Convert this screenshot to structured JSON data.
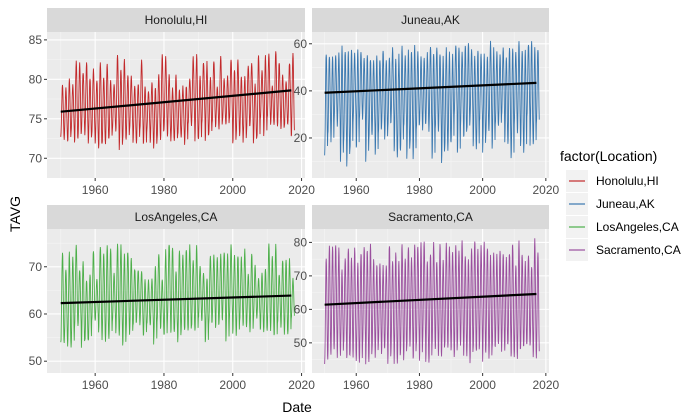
{
  "chart_data": {
    "type": "line",
    "xlabel": "Date",
    "ylabel": "TAVG",
    "legend": {
      "title": "factor(Location)",
      "position": "right"
    },
    "grid": true,
    "x_ticks": [
      1960,
      1980,
      2000,
      2020
    ],
    "panels": [
      {
        "name": "Honolulu,HI",
        "color": "#c2292b",
        "xlim": [
          1946,
          2021
        ],
        "ylim": [
          67.5,
          86
        ],
        "y_ticks": [
          70,
          75,
          80,
          85
        ],
        "min_range": [
          71.5,
          74.5
        ],
        "max_range": [
          78.5,
          83.5
        ],
        "trend": {
          "x": [
            1950,
            2017
          ],
          "y": [
            75.9,
            78.6
          ]
        }
      },
      {
        "name": "Juneau,AK",
        "color": "#3a78b0",
        "xlim": [
          1946,
          2021
        ],
        "ylim": [
          3,
          65
        ],
        "y_ticks": [
          20,
          40,
          60
        ],
        "min_range": [
          10,
          30
        ],
        "max_range": [
          54,
          60
        ],
        "trend": {
          "x": [
            1950,
            2017
          ],
          "y": [
            39.2,
            43.4
          ]
        }
      },
      {
        "name": "LosAngeles,CA",
        "color": "#4daf4a",
        "xlim": [
          1946,
          2021
        ],
        "ylim": [
          47.5,
          78
        ],
        "y_ticks": [
          50,
          60,
          70
        ],
        "min_range": [
          53,
          59
        ],
        "max_range": [
          67,
          75
        ],
        "trend": {
          "x": [
            1950,
            2017
          ],
          "y": [
            62.3,
            63.9
          ]
        }
      },
      {
        "name": "Sacramento,CA",
        "color": "#9a4f9e",
        "xlim": [
          1946,
          2021
        ],
        "ylim": [
          41,
          84
        ],
        "y_ticks": [
          50,
          60,
          70,
          80
        ],
        "min_range": [
          44,
          50
        ],
        "max_range": [
          72,
          81
        ],
        "trend": {
          "x": [
            1950,
            2017
          ],
          "y": [
            61.4,
            64.6
          ]
        }
      }
    ]
  }
}
